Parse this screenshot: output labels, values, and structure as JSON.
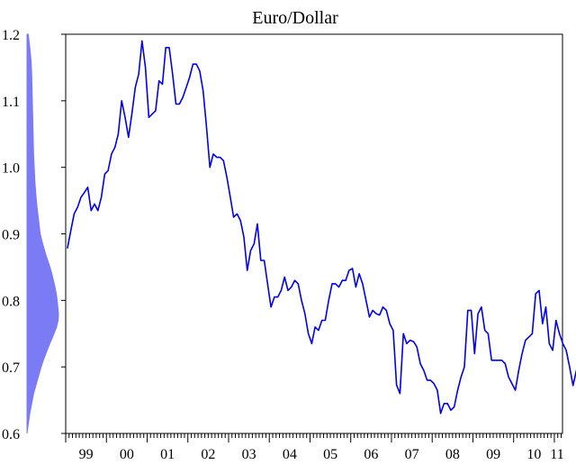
{
  "chart_data": {
    "type": "line",
    "title": "Euro/Dollar",
    "xlabel": "",
    "ylabel": "",
    "x_tick_labels": [
      "99",
      "00",
      "01",
      "02",
      "03",
      "04",
      "05",
      "06",
      "07",
      "08",
      "09",
      "10",
      "11"
    ],
    "y_tick_labels": [
      "1.2",
      "1.1",
      "1.0",
      "0.9",
      "0.8",
      "0.7",
      "0.6"
    ],
    "ylim": [
      0.6,
      1.2
    ],
    "xlim": [
      1999.0,
      2011.2
    ],
    "grid": false,
    "x_frequency": "monthly",
    "x_start": "1999-01",
    "series": [
      {
        "color": "#0000ee",
        "values": [
          0.878,
          0.905,
          0.93,
          0.94,
          0.955,
          0.962,
          0.97,
          0.935,
          0.945,
          0.935,
          0.955,
          0.99,
          0.995,
          1.02,
          1.03,
          1.05,
          1.1,
          1.075,
          1.045,
          1.08,
          1.12,
          1.14,
          1.19,
          1.15,
          1.075,
          1.08,
          1.085,
          1.13,
          1.125,
          1.18,
          1.18,
          1.14,
          1.095,
          1.095,
          1.105,
          1.12,
          1.135,
          1.155,
          1.155,
          1.145,
          1.115,
          1.06,
          1.0,
          1.02,
          1.015,
          1.015,
          1.01,
          0.985,
          0.955,
          0.925,
          0.93,
          0.92,
          0.895,
          0.845,
          0.875,
          0.885,
          0.915,
          0.86,
          0.86,
          0.825,
          0.79,
          0.805,
          0.805,
          0.815,
          0.835,
          0.815,
          0.82,
          0.83,
          0.825,
          0.8,
          0.78,
          0.75,
          0.735,
          0.76,
          0.755,
          0.77,
          0.77,
          0.8,
          0.825,
          0.825,
          0.82,
          0.83,
          0.83,
          0.845,
          0.848,
          0.82,
          0.84,
          0.825,
          0.8,
          0.775,
          0.785,
          0.78,
          0.778,
          0.79,
          0.785,
          0.765,
          0.755,
          0.673,
          0.66,
          0.75,
          0.735,
          0.74,
          0.738,
          0.73,
          0.705,
          0.695,
          0.68,
          0.68,
          0.675,
          0.665,
          0.63,
          0.645,
          0.645,
          0.635,
          0.64,
          0.665,
          0.685,
          0.7,
          0.785,
          0.785,
          0.72,
          0.78,
          0.79,
          0.755,
          0.75,
          0.71,
          0.71,
          0.71,
          0.71,
          0.705,
          0.685,
          0.675,
          0.665,
          0.695,
          0.72,
          0.74,
          0.745,
          0.75,
          0.81,
          0.815,
          0.765,
          0.79,
          0.735,
          0.725,
          0.77,
          0.75,
          0.735,
          0.725,
          0.7,
          0.672,
          0.695,
          0.69,
          0.7
        ]
      }
    ],
    "marginal_density": {
      "color": "#7b7bf5",
      "y": [
        0.6,
        0.61,
        0.62,
        0.63,
        0.64,
        0.65,
        0.66,
        0.67,
        0.68,
        0.69,
        0.7,
        0.71,
        0.72,
        0.73,
        0.74,
        0.75,
        0.76,
        0.77,
        0.78,
        0.79,
        0.8,
        0.81,
        0.82,
        0.83,
        0.84,
        0.85,
        0.86,
        0.87,
        0.88,
        0.89,
        0.9,
        0.92,
        0.94,
        0.96,
        0.98,
        1.0,
        1.02,
        1.04,
        1.06,
        1.08,
        1.1,
        1.12,
        1.14,
        1.16,
        1.18,
        1.2
      ],
      "density": [
        0.0,
        0.03,
        0.06,
        0.09,
        0.13,
        0.17,
        0.21,
        0.27,
        0.33,
        0.39,
        0.45,
        0.52,
        0.6,
        0.68,
        0.77,
        0.86,
        0.94,
        0.99,
        1.0,
        0.98,
        0.96,
        0.93,
        0.89,
        0.84,
        0.79,
        0.73,
        0.66,
        0.59,
        0.53,
        0.47,
        0.42,
        0.37,
        0.32,
        0.28,
        0.25,
        0.23,
        0.21,
        0.2,
        0.19,
        0.18,
        0.17,
        0.16,
        0.15,
        0.13,
        0.09,
        0.04
      ]
    }
  }
}
